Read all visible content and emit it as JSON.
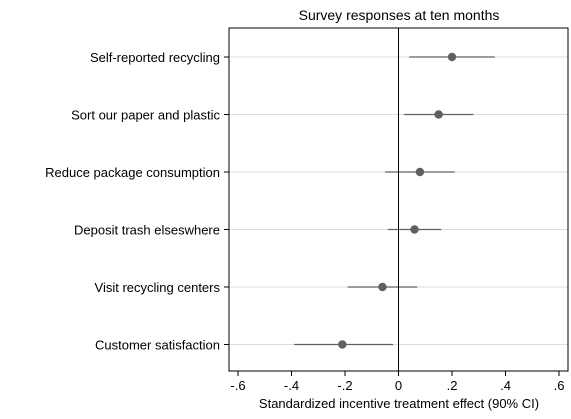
{
  "chart_data": {
    "type": "scatter",
    "subtype": "coefficient-plot-with-confidence-intervals",
    "title": "Survey responses at ten months",
    "xlabel": "Standardized incentive treatment effect (90% CI)",
    "ylabel": "",
    "xlim": [
      -0.6,
      0.6
    ],
    "x_ticks": [
      -0.6,
      -0.4,
      -0.2,
      0,
      0.2,
      0.4,
      0.6
    ],
    "x_tick_labels": [
      "-.6",
      "-.4",
      "-.2",
      "0",
      ".2",
      ".4",
      ".6"
    ],
    "reference_line_x": 0,
    "horizontal_gridlines": true,
    "vertical_gridlines": false,
    "legend": "none",
    "categories": [
      "Self-reported recycling",
      "Sort our paper and plastic",
      "Reduce package consumption",
      "Deposit trash elseswhere",
      "Visit recycling centers",
      "Customer satisfaction"
    ],
    "series": [
      {
        "estimate": [
          0.2,
          0.15,
          0.08,
          0.06,
          -0.06,
          -0.21
        ],
        "ci_low": [
          0.04,
          0.02,
          -0.05,
          -0.04,
          -0.19,
          -0.39
        ],
        "ci_high": [
          0.36,
          0.28,
          0.21,
          0.16,
          0.07,
          -0.02
        ]
      }
    ],
    "colors": {
      "marker": "#606060",
      "whisker": "#606060",
      "gridline": "#dedede",
      "reference_line": "#000000",
      "axis": "#000000",
      "background": "#ffffff"
    }
  }
}
